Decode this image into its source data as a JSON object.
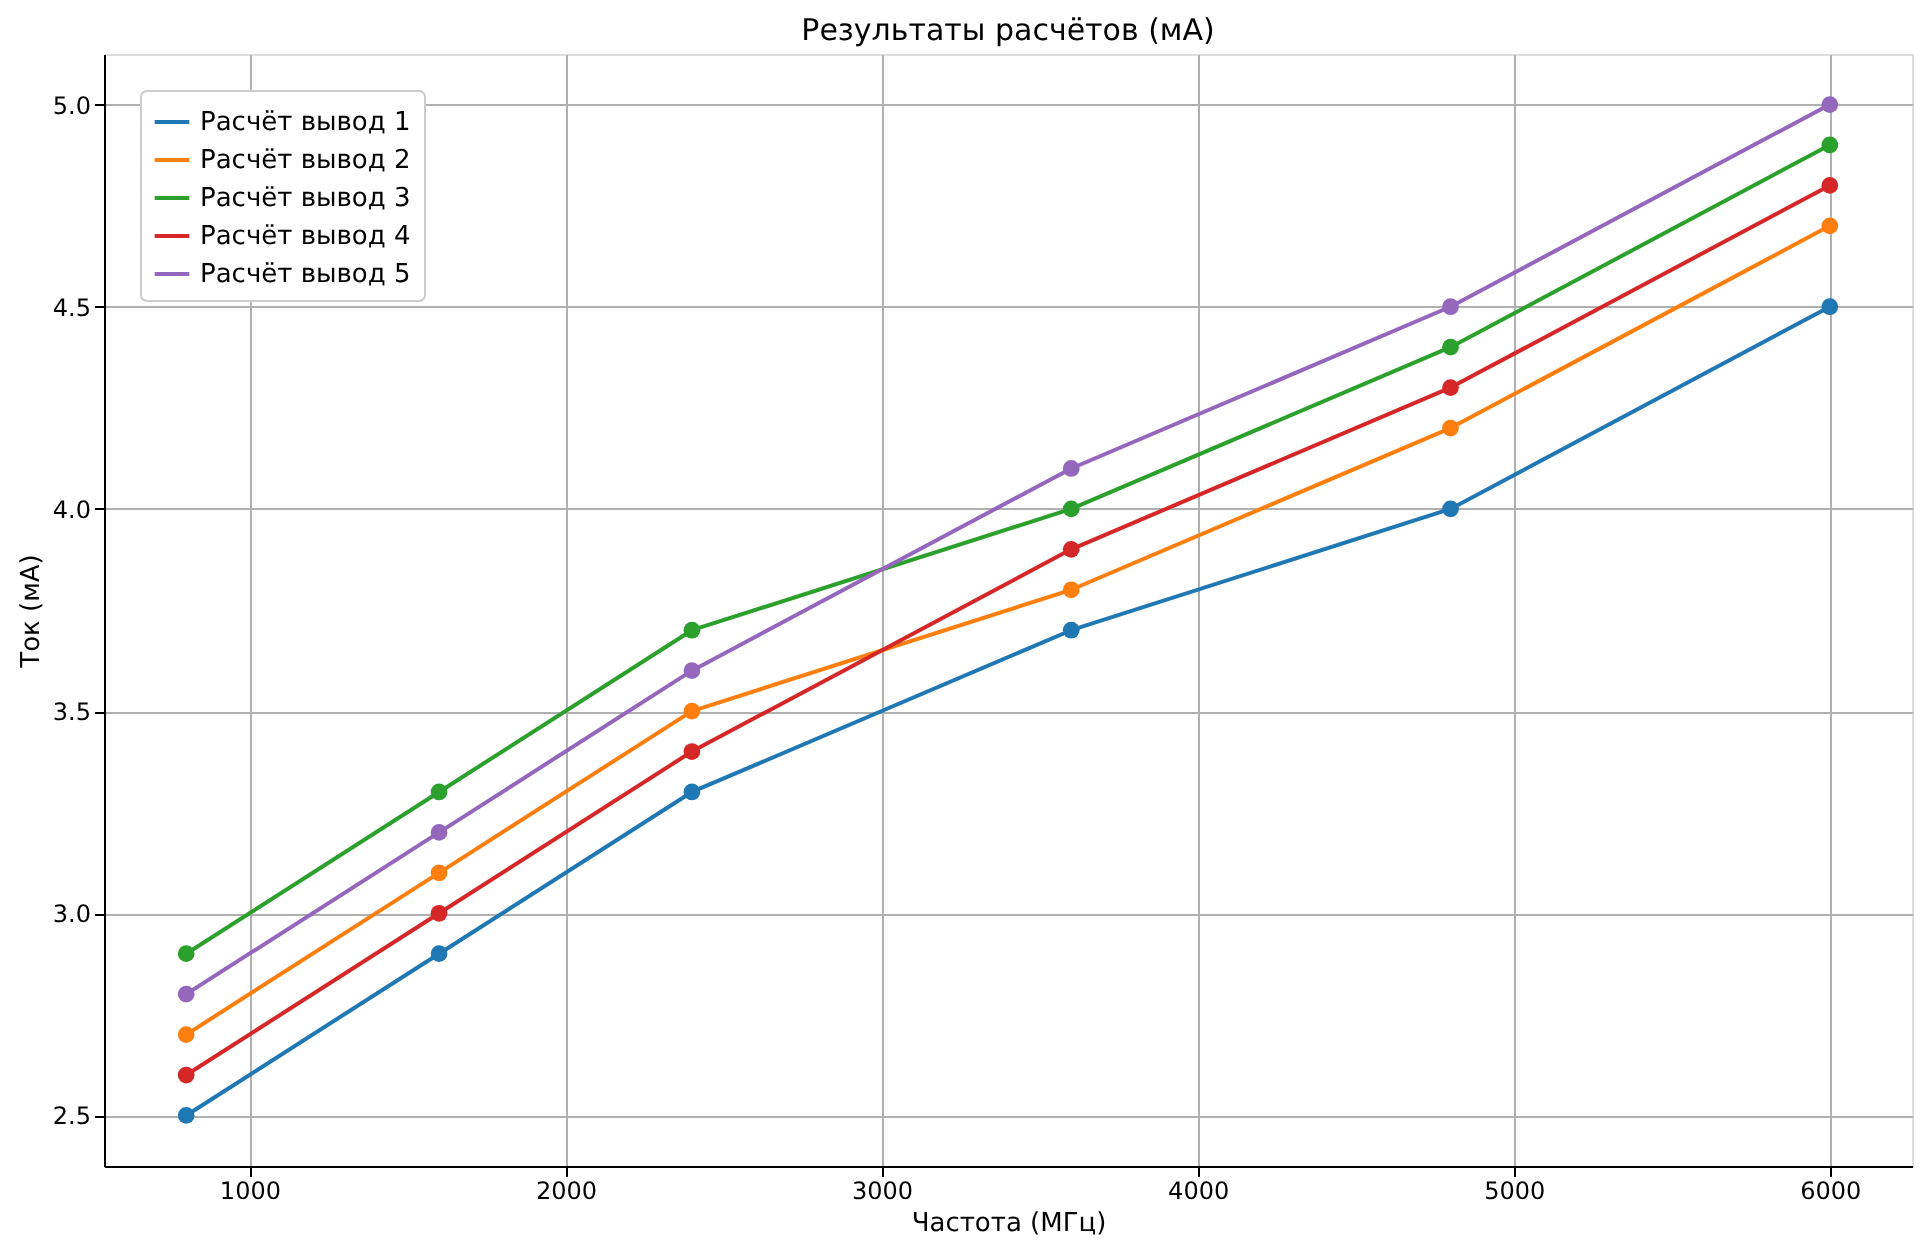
{
  "chart_data": {
    "type": "line",
    "title": "Результаты расчётов (мА)",
    "xlabel": "Частота (МГц)",
    "ylabel": "Ток (мА)",
    "x": [
      800,
      1600,
      2400,
      3600,
      4800,
      6000
    ],
    "series": [
      {
        "name": "Расчёт вывод 1",
        "color": "#1f77b4",
        "values": [
          2.5,
          2.9,
          3.3,
          3.7,
          4.0,
          4.5
        ]
      },
      {
        "name": "Расчёт вывод 2",
        "color": "#ff7f0e",
        "values": [
          2.7,
          3.1,
          3.5,
          3.8,
          4.2,
          4.7
        ]
      },
      {
        "name": "Расчёт вывод 3",
        "color": "#2ca02c",
        "values": [
          2.9,
          3.3,
          3.7,
          4.0,
          4.4,
          4.9
        ]
      },
      {
        "name": "Расчёт вывод 4",
        "color": "#d62728",
        "values": [
          2.6,
          3.0,
          3.4,
          3.9,
          4.3,
          4.8
        ]
      },
      {
        "name": "Расчёт вывод 5",
        "color": "#9467bd",
        "values": [
          2.8,
          3.2,
          3.6,
          4.1,
          4.5,
          5.0
        ]
      }
    ],
    "xlim": [
      540,
      6260
    ],
    "ylim": [
      2.375,
      5.125
    ],
    "xticks": [
      1000,
      2000,
      3000,
      4000,
      5000,
      6000
    ],
    "yticks": [
      {
        "value": 2.5,
        "label": "2.5"
      },
      {
        "value": 3.0,
        "label": "3.0"
      },
      {
        "value": 3.5,
        "label": "3.5"
      },
      {
        "value": 4.0,
        "label": "4.0"
      },
      {
        "value": 4.5,
        "label": "4.5"
      },
      {
        "value": 5.0,
        "label": "5.0"
      }
    ],
    "grid": true,
    "legend": "top left",
    "marker": "circle",
    "line_style": "solid"
  }
}
